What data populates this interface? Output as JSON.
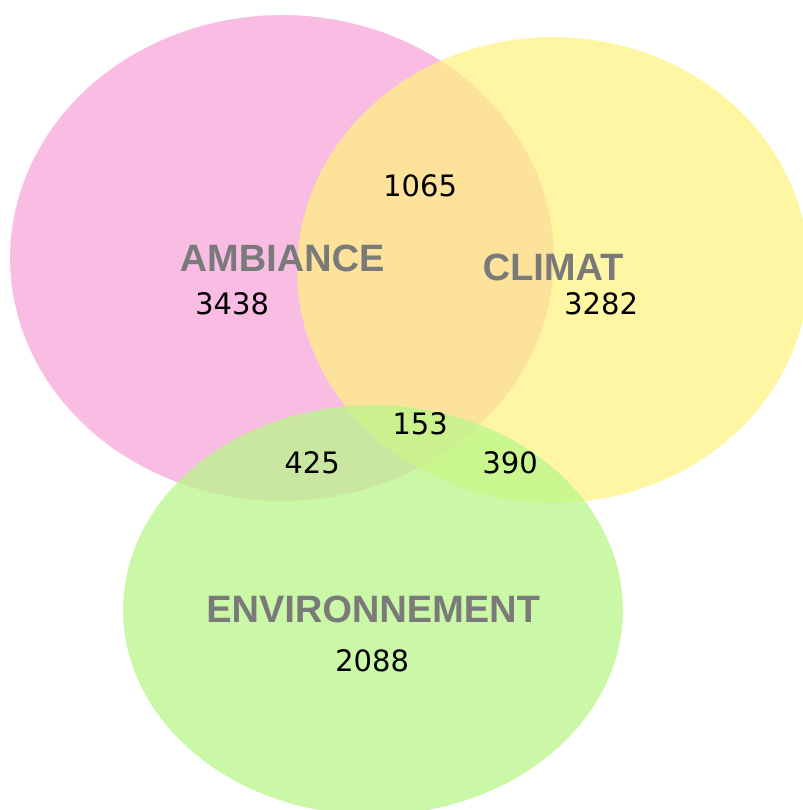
{
  "sets": [
    {
      "label": "AMBIANCE",
      "count": 3438
    },
    {
      "label": "CLIMAT",
      "count": 3282
    },
    {
      "label": "ENVIRONNEMENT",
      "count": 2088
    }
  ],
  "intersections": {
    "ambiance_climat": 1065,
    "ambiance_environnement": 425,
    "climat_environnement": 390,
    "all": 153
  }
}
